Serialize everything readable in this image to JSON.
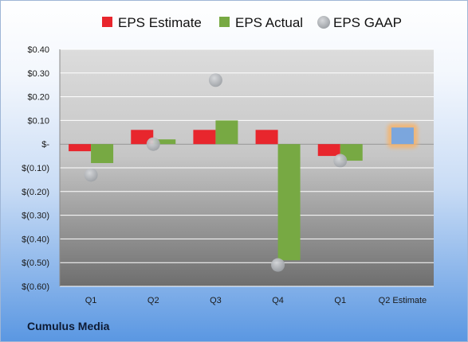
{
  "chart_data": {
    "type": "bar",
    "categories": [
      "Q1",
      "Q2",
      "Q3",
      "Q4",
      "Q1",
      "Q2 Estimate"
    ],
    "series": [
      {
        "name": "EPS Estimate",
        "kind": "bar",
        "color": "#e8262d",
        "values": [
          -0.03,
          0.06,
          0.06,
          0.06,
          -0.05,
          null
        ]
      },
      {
        "name": "EPS Actual",
        "kind": "bar",
        "color": "#77a943",
        "values": [
          -0.08,
          0.02,
          0.1,
          -0.49,
          -0.07,
          null
        ]
      },
      {
        "name": "EPS GAAP",
        "kind": "point",
        "color": "#aeb1b5",
        "values": [
          -0.13,
          0.0,
          0.27,
          -0.51,
          -0.07,
          null
        ]
      }
    ],
    "highlight": {
      "category": "Q2 Estimate",
      "value": 0.07,
      "color": "#7ba6dd",
      "glow": "#f6b36a"
    },
    "yticks": [
      0.4,
      0.3,
      0.2,
      0.1,
      0,
      -0.1,
      -0.2,
      -0.3,
      -0.4,
      -0.5,
      -0.6
    ],
    "ytick_labels": [
      "$0.40",
      "$0.30",
      "$0.20",
      "$0.10",
      "$-",
      "$(0.10)",
      "$(0.20)",
      "$(0.30)",
      "$(0.40)",
      "$(0.50)",
      "$(0.60)"
    ],
    "ylim": [
      -0.6,
      0.4
    ],
    "grid": true,
    "legend_position": "top"
  },
  "company": "Cumulus Media"
}
